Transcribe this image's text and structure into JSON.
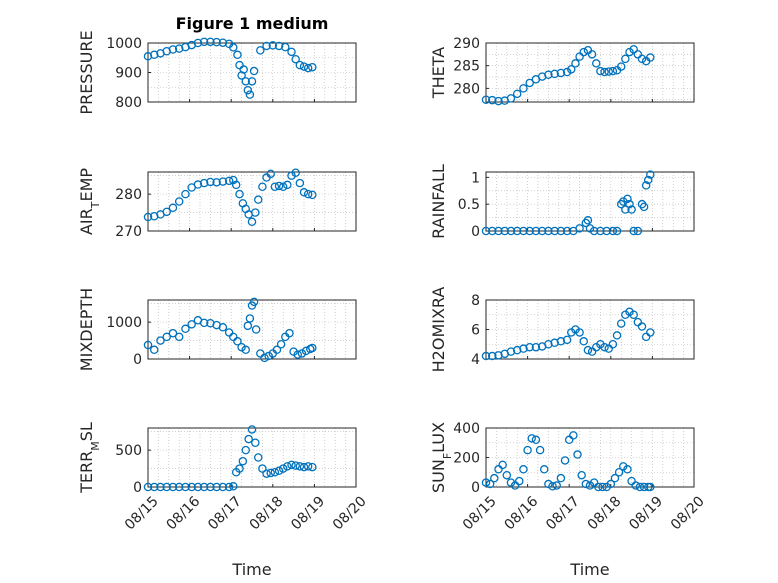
{
  "title": "Figure 1 medium",
  "colors": {
    "marker": "#0072bd",
    "axis": "#262626",
    "grid": "#b4b4b4"
  },
  "x_axis": {
    "label": "Time",
    "ticks": [
      "08/15",
      "08/16",
      "08/17",
      "08/18",
      "08/19",
      "08/20"
    ],
    "range_days": [
      15,
      20
    ]
  },
  "chart_data": [
    {
      "type": "scatter",
      "ylabel": "PRESSURE",
      "ylim": [
        800,
        1000
      ],
      "yticks": [
        800,
        900,
        1000
      ],
      "x": [
        15,
        15.15,
        15.3,
        15.45,
        15.6,
        15.75,
        15.9,
        16.05,
        16.2,
        16.35,
        16.5,
        16.65,
        16.8,
        16.95,
        17.05,
        17.15,
        17.2,
        17.25,
        17.3,
        17.35,
        17.4,
        17.45,
        17.5,
        17.55,
        17.7,
        17.85,
        18.0,
        18.15,
        18.3,
        18.45,
        18.55,
        18.65,
        18.75,
        18.85,
        18.95
      ],
      "y": [
        955,
        960,
        965,
        972,
        978,
        981,
        986,
        993,
        1000,
        1004,
        1004,
        1003,
        1001,
        997,
        985,
        960,
        925,
        890,
        910,
        870,
        840,
        825,
        870,
        905,
        975,
        990,
        992,
        990,
        986,
        970,
        945,
        925,
        920,
        915,
        918
      ]
    },
    {
      "type": "scatter",
      "ylabel": "THETA",
      "ylim": [
        277,
        290
      ],
      "yticks": [
        280,
        285,
        290
      ],
      "x": [
        15,
        15.15,
        15.3,
        15.45,
        15.6,
        15.75,
        15.9,
        16.05,
        16.2,
        16.35,
        16.5,
        16.65,
        16.8,
        16.95,
        17.05,
        17.15,
        17.25,
        17.35,
        17.45,
        17.55,
        17.65,
        17.75,
        17.85,
        17.95,
        18.05,
        18.15,
        18.25,
        18.35,
        18.45,
        18.55,
        18.65,
        18.75,
        18.85,
        18.95
      ],
      "y": [
        277.5,
        277.4,
        277.2,
        277.3,
        277.8,
        278.8,
        280.0,
        281.2,
        282.0,
        282.6,
        283.0,
        283.2,
        283.4,
        283.6,
        284.2,
        285.5,
        287.0,
        288.0,
        288.4,
        287.5,
        285.5,
        283.8,
        283.6,
        283.7,
        283.8,
        284.0,
        284.8,
        286.5,
        288.0,
        288.6,
        287.5,
        286.5,
        286.0,
        286.8
      ]
    },
    {
      "type": "scatter",
      "ylabel": "AIR_TEMP",
      "ylim": [
        270,
        286
      ],
      "yticks": [
        270,
        280
      ],
      "x": [
        15,
        15.15,
        15.3,
        15.45,
        15.6,
        15.75,
        15.9,
        16.05,
        16.2,
        16.35,
        16.5,
        16.65,
        16.8,
        16.95,
        17.05,
        17.12,
        17.2,
        17.28,
        17.35,
        17.42,
        17.5,
        17.58,
        17.65,
        17.75,
        17.85,
        17.95,
        18.05,
        18.15,
        18.25,
        18.35,
        18.45,
        18.55,
        18.65,
        18.75,
        18.85,
        18.95
      ],
      "y": [
        273.8,
        274.0,
        274.5,
        275.2,
        276.3,
        278.0,
        280.0,
        281.8,
        282.6,
        283.0,
        283.3,
        283.2,
        283.4,
        283.6,
        283.8,
        282.5,
        280.0,
        277.5,
        276.0,
        274.5,
        272.5,
        275.0,
        278.5,
        282.0,
        284.5,
        285.5,
        282.0,
        282.2,
        282.0,
        282.5,
        285.0,
        285.8,
        283.0,
        280.5,
        280.0,
        279.8
      ]
    },
    {
      "type": "scatter",
      "ylabel": "RAINFALL",
      "ylim": [
        0,
        1.1
      ],
      "yticks": [
        0,
        0.5,
        1
      ],
      "x": [
        15,
        15.15,
        15.3,
        15.45,
        15.6,
        15.75,
        15.9,
        16.05,
        16.2,
        16.35,
        16.5,
        16.65,
        16.8,
        16.95,
        17.1,
        17.25,
        17.4,
        17.45,
        17.5,
        17.6,
        17.75,
        17.9,
        18.05,
        18.15,
        18.25,
        18.3,
        18.35,
        18.4,
        18.45,
        18.5,
        18.55,
        18.65,
        18.75,
        18.8,
        18.85,
        18.9,
        18.95
      ],
      "y": [
        0,
        0,
        0,
        0,
        0,
        0,
        0,
        0,
        0,
        0,
        0,
        0,
        0,
        0,
        0,
        0.05,
        0.15,
        0.2,
        0.05,
        0,
        0,
        0,
        0,
        0,
        0.5,
        0.55,
        0.4,
        0.6,
        0.5,
        0.4,
        0,
        0,
        0.5,
        0.45,
        0.85,
        0.95,
        1.05
      ]
    },
    {
      "type": "scatter",
      "ylabel": "MIXDEPTH",
      "ylim": [
        0,
        1600
      ],
      "yticks": [
        0,
        1000
      ],
      "x": [
        15,
        15.15,
        15.3,
        15.45,
        15.6,
        15.75,
        15.9,
        16.05,
        16.2,
        16.35,
        16.5,
        16.65,
        16.8,
        16.95,
        17.05,
        17.15,
        17.25,
        17.35,
        17.4,
        17.45,
        17.5,
        17.55,
        17.6,
        17.7,
        17.8,
        17.9,
        18.0,
        18.1,
        18.2,
        18.3,
        18.4,
        18.5,
        18.6,
        18.7,
        18.8,
        18.9,
        18.95
      ],
      "y": [
        380,
        250,
        500,
        600,
        700,
        600,
        820,
        940,
        1050,
        980,
        970,
        920,
        860,
        720,
        600,
        480,
        320,
        250,
        900,
        1100,
        1450,
        1550,
        800,
        150,
        30,
        80,
        150,
        250,
        400,
        600,
        700,
        200,
        120,
        150,
        220,
        270,
        300
      ]
    },
    {
      "type": "scatter",
      "ylabel": "H2OMIXRA",
      "ylim": [
        4,
        8
      ],
      "yticks": [
        4,
        6,
        8
      ],
      "x": [
        15,
        15.15,
        15.3,
        15.45,
        15.6,
        15.75,
        15.9,
        16.05,
        16.2,
        16.35,
        16.5,
        16.65,
        16.8,
        16.95,
        17.05,
        17.15,
        17.25,
        17.35,
        17.45,
        17.55,
        17.65,
        17.75,
        17.85,
        17.95,
        18.05,
        18.15,
        18.25,
        18.35,
        18.45,
        18.55,
        18.65,
        18.75,
        18.85,
        18.95
      ],
      "y": [
        4.2,
        4.2,
        4.25,
        4.35,
        4.5,
        4.6,
        4.7,
        4.8,
        4.8,
        4.85,
        5.0,
        5.1,
        5.2,
        5.3,
        5.8,
        6.0,
        5.8,
        5.2,
        4.6,
        4.5,
        4.8,
        5.0,
        4.8,
        4.7,
        5.0,
        5.6,
        6.4,
        7.0,
        7.2,
        7.0,
        6.5,
        6.2,
        5.5,
        5.8
      ]
    },
    {
      "type": "scatter",
      "ylabel": "TERR_MSL",
      "ylim": [
        0,
        800
      ],
      "yticks": [
        0,
        500
      ],
      "x": [
        15,
        15.15,
        15.3,
        15.45,
        15.6,
        15.75,
        15.9,
        16.05,
        16.2,
        16.35,
        16.5,
        16.65,
        16.8,
        16.95,
        17.05,
        17.12,
        17.2,
        17.28,
        17.35,
        17.42,
        17.5,
        17.58,
        17.65,
        17.75,
        17.85,
        17.95,
        18.05,
        18.15,
        18.25,
        18.35,
        18.45,
        18.55,
        18.65,
        18.75,
        18.85,
        18.95
      ],
      "y": [
        0,
        0,
        0,
        0,
        0,
        0,
        0,
        0,
        0,
        0,
        0,
        0,
        0,
        0,
        10,
        200,
        250,
        350,
        500,
        650,
        780,
        600,
        400,
        250,
        180,
        190,
        200,
        220,
        250,
        280,
        300,
        290,
        280,
        270,
        280,
        270
      ]
    },
    {
      "type": "scatter",
      "ylabel": "SUN_FLUX",
      "ylim": [
        0,
        400
      ],
      "yticks": [
        0,
        200,
        400
      ],
      "x": [
        15,
        15.1,
        15.2,
        15.3,
        15.4,
        15.5,
        15.6,
        15.7,
        15.8,
        15.9,
        16.0,
        16.1,
        16.2,
        16.3,
        16.4,
        16.5,
        16.6,
        16.7,
        16.8,
        16.9,
        17.0,
        17.1,
        17.2,
        17.3,
        17.4,
        17.5,
        17.6,
        17.7,
        17.8,
        17.9,
        18.0,
        18.1,
        18.2,
        18.3,
        18.4,
        18.5,
        18.6,
        18.7,
        18.8,
        18.9,
        18.95
      ],
      "y": [
        30,
        20,
        60,
        120,
        150,
        80,
        30,
        10,
        40,
        120,
        250,
        330,
        320,
        250,
        120,
        20,
        5,
        10,
        60,
        180,
        320,
        350,
        220,
        80,
        20,
        10,
        30,
        0,
        0,
        0,
        20,
        60,
        100,
        140,
        120,
        40,
        10,
        0,
        0,
        0,
        0
      ]
    }
  ]
}
